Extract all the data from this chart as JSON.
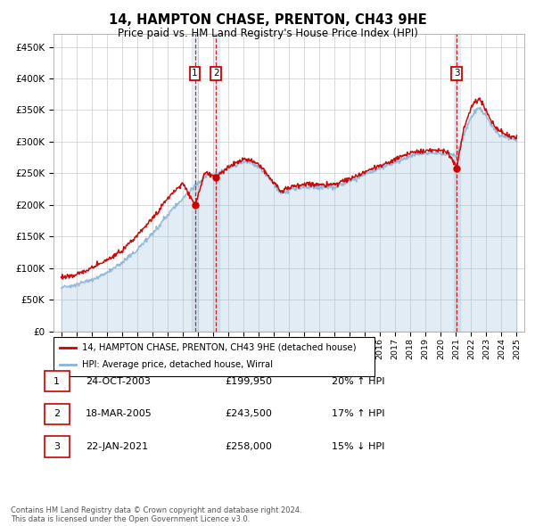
{
  "title": "14, HAMPTON CHASE, PRENTON, CH43 9HE",
  "subtitle": "Price paid vs. HM Land Registry's House Price Index (HPI)",
  "legend_line1": "14, HAMPTON CHASE, PRENTON, CH43 9HE (detached house)",
  "legend_line2": "HPI: Average price, detached house, Wirral",
  "footer": "Contains HM Land Registry data © Crown copyright and database right 2024.\nThis data is licensed under the Open Government Licence v3.0.",
  "red_color": "#cc0000",
  "blue_color": "#8ab4d4",
  "ylim": [
    0,
    470000
  ],
  "yticks": [
    0,
    50000,
    100000,
    150000,
    200000,
    250000,
    300000,
    350000,
    400000,
    450000
  ],
  "transactions": [
    {
      "label": "1",
      "date": "24-OCT-2003",
      "price": 199950,
      "x_year": 2003.81
    },
    {
      "label": "2",
      "date": "18-MAR-2005",
      "price": 243500,
      "x_year": 2005.21
    },
    {
      "label": "3",
      "date": "22-JAN-2021",
      "price": 258000,
      "x_year": 2021.06
    }
  ],
  "table_rows": [
    {
      "num": "1",
      "date": "24-OCT-2003",
      "price": "£199,950",
      "pct": "20% ↑ HPI"
    },
    {
      "num": "2",
      "date": "18-MAR-2005",
      "price": "£243,500",
      "pct": "17% ↑ HPI"
    },
    {
      "num": "3",
      "date": "22-JAN-2021",
      "price": "£258,000",
      "pct": "15% ↓ HPI"
    }
  ],
  "xlim": [
    1994.5,
    2025.5
  ],
  "hpi_anchors_x": [
    1995.0,
    1996.0,
    1997.0,
    1998.0,
    1999.0,
    2000.0,
    2001.0,
    2002.0,
    2003.0,
    2004.0,
    2004.6,
    2005.0,
    2006.0,
    2007.0,
    2007.5,
    2008.0,
    2008.5,
    2009.0,
    2009.5,
    2010.0,
    2011.0,
    2012.0,
    2013.0,
    2014.0,
    2015.0,
    2016.0,
    2017.0,
    2018.0,
    2019.0,
    2020.0,
    2020.5,
    2021.0,
    2021.5,
    2022.0,
    2022.5,
    2023.0,
    2023.5,
    2024.0,
    2024.5,
    2025.0
  ],
  "hpi_anchors_y": [
    70000,
    74000,
    82000,
    93000,
    108000,
    130000,
    155000,
    185000,
    210000,
    235000,
    248000,
    248000,
    258000,
    268000,
    268000,
    260000,
    248000,
    233000,
    218000,
    225000,
    228000,
    228000,
    228000,
    238000,
    248000,
    258000,
    268000,
    278000,
    282000,
    282000,
    280000,
    278000,
    310000,
    340000,
    355000,
    340000,
    320000,
    310000,
    305000,
    302000
  ],
  "red_anchors_x": [
    1995.0,
    1996.0,
    1997.0,
    1998.0,
    1999.0,
    2000.0,
    2001.0,
    2002.0,
    2003.0,
    2003.81,
    2004.5,
    2005.21,
    2006.0,
    2007.0,
    2007.5,
    2008.0,
    2008.5,
    2009.0,
    2009.5,
    2010.0,
    2011.0,
    2012.0,
    2013.0,
    2014.0,
    2015.0,
    2016.0,
    2017.0,
    2018.0,
    2019.0,
    2020.0,
    2020.5,
    2021.06,
    2021.5,
    2022.0,
    2022.5,
    2023.0,
    2023.5,
    2024.0,
    2024.5,
    2025.0
  ],
  "red_anchors_y": [
    85000,
    90000,
    100000,
    112000,
    128000,
    152000,
    178000,
    210000,
    235000,
    199950,
    252000,
    243500,
    260000,
    272000,
    272000,
    263000,
    251000,
    236000,
    220000,
    228000,
    232000,
    232000,
    232000,
    242000,
    252000,
    262000,
    272000,
    282000,
    286000,
    286000,
    283000,
    258000,
    320000,
    355000,
    370000,
    348000,
    326000,
    315000,
    308000,
    305000
  ]
}
